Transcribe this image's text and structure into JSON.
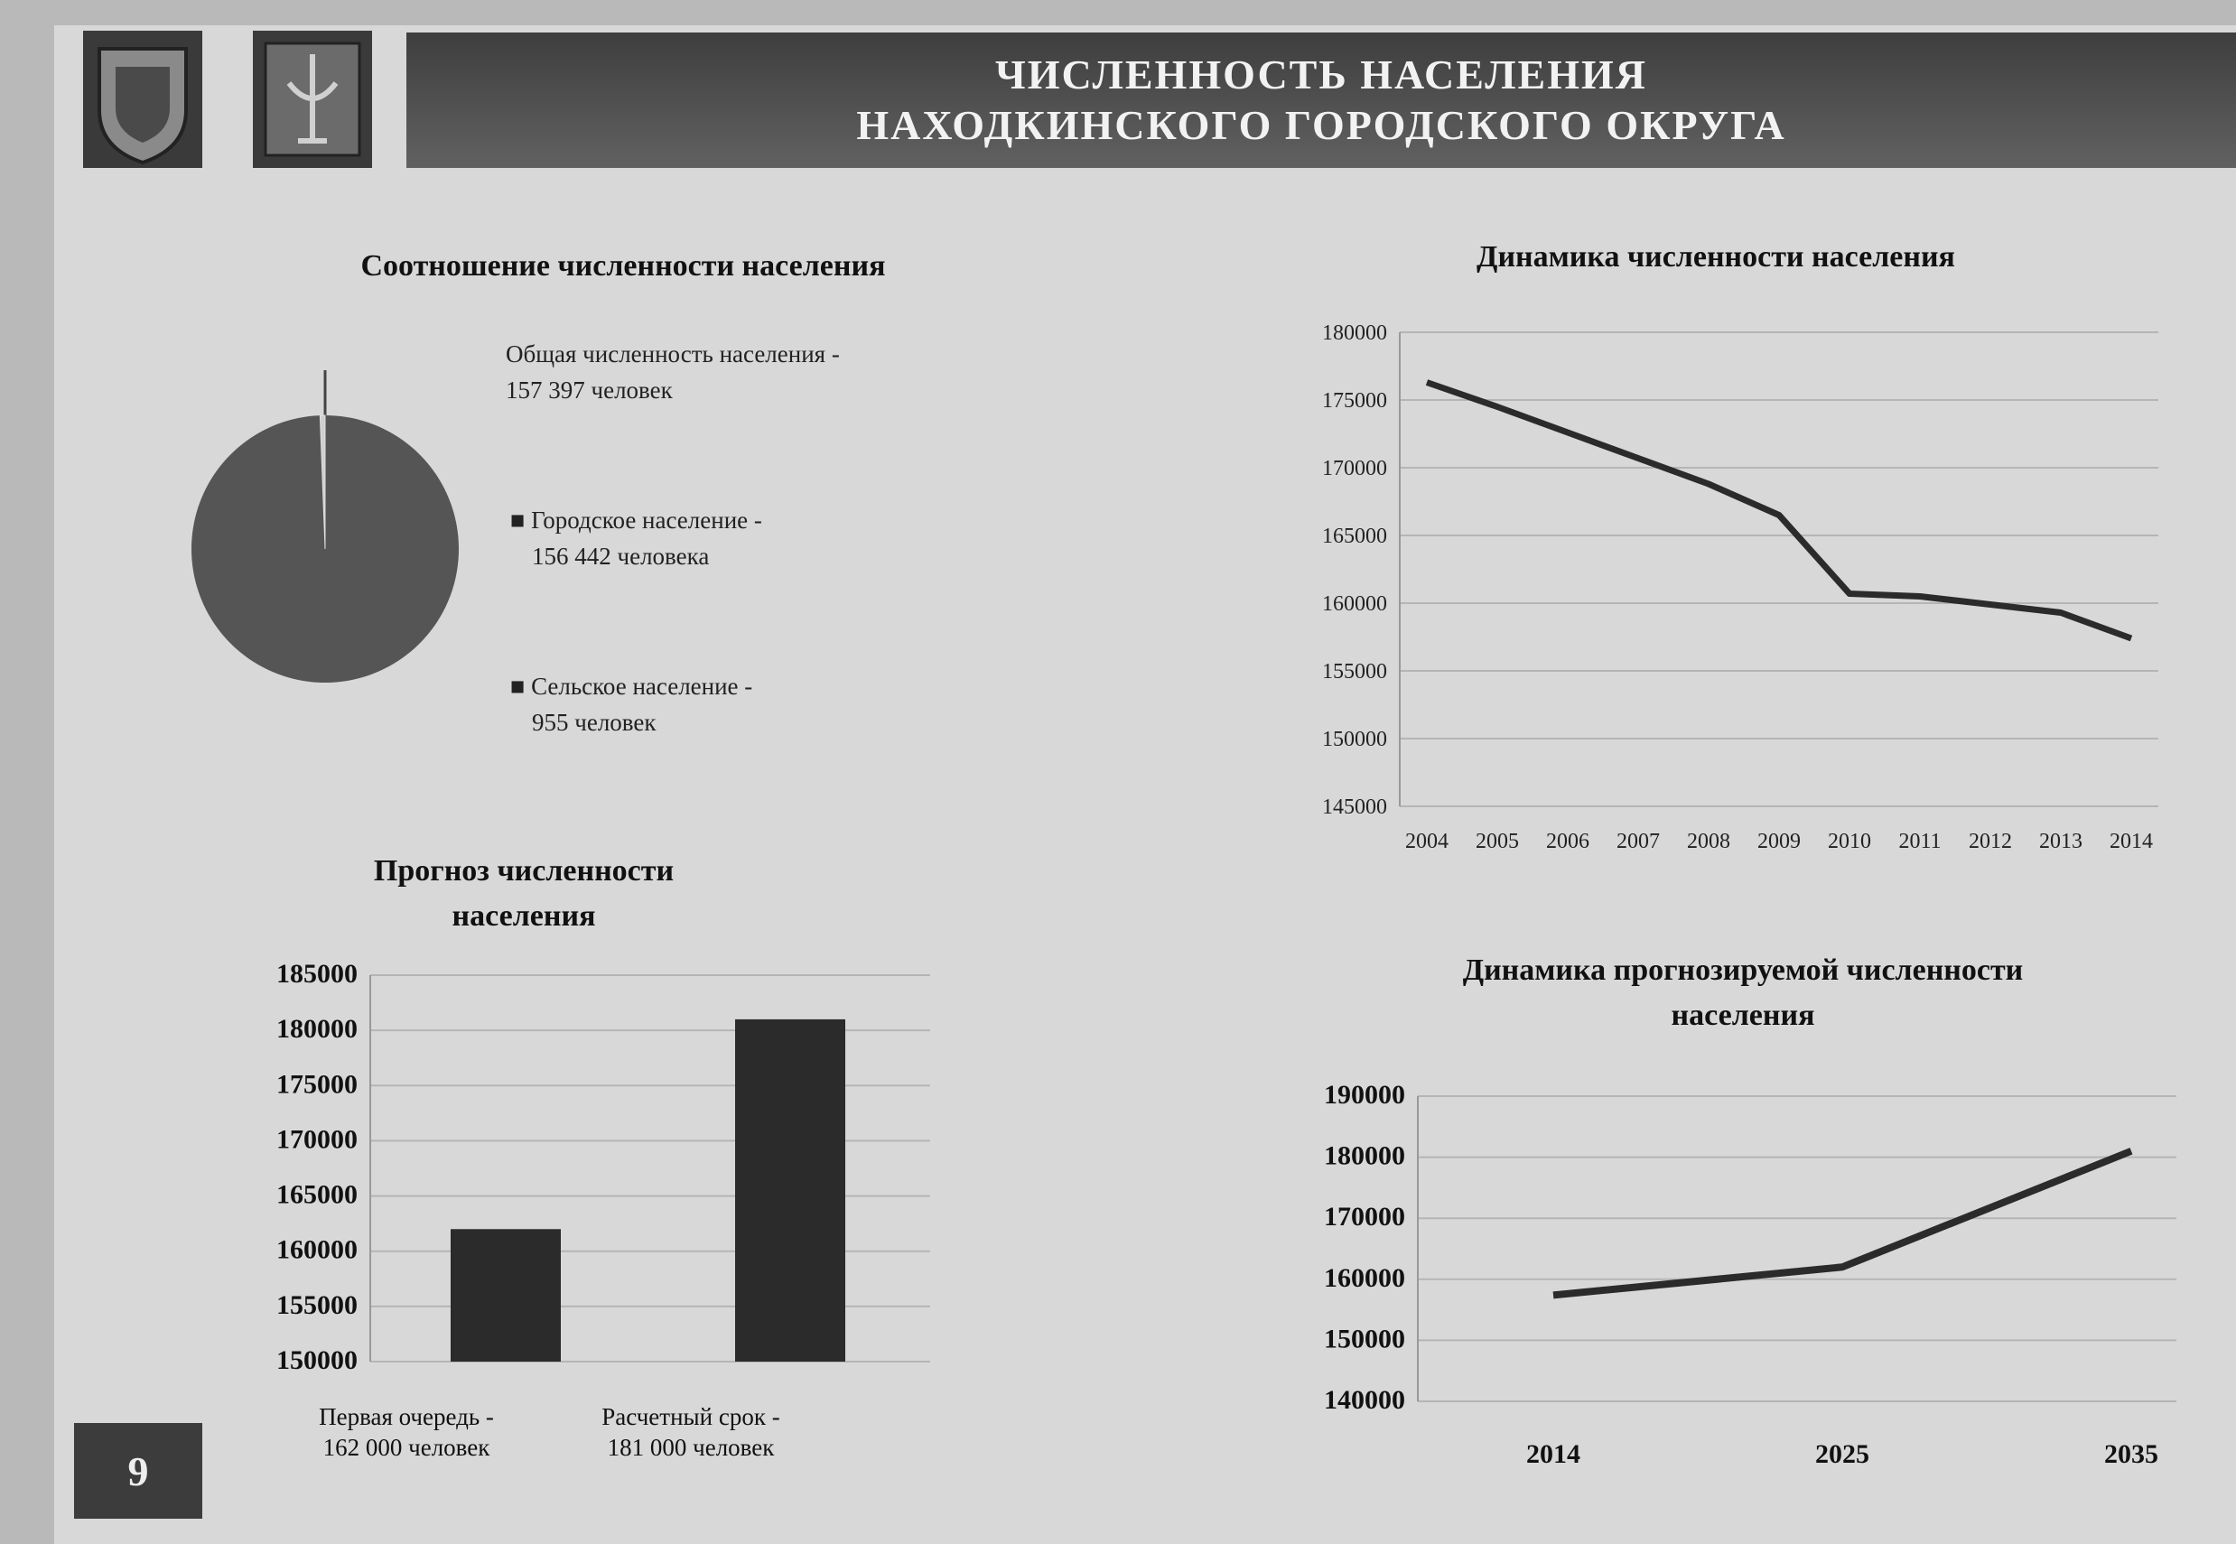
{
  "header": {
    "title_line1": "ЧИСЛЕННОСТЬ НАСЕЛЕНИЯ",
    "title_line2": "НАХОДКИНСКОГО ГОРОДСКОГО ОКРУГА"
  },
  "page_number": "9",
  "colors": {
    "header_bg": "#4a4a4a",
    "series": "#2b2b2b",
    "pie": "#555555",
    "grid": "#b5b5b5"
  },
  "chart_data": [
    {
      "type": "pie",
      "title": "Соотношение численности населения",
      "total_label": "Общая численность населения -",
      "total_value": "157 397 человек",
      "slices": [
        {
          "label": "Городское население -",
          "value_text": "156 442 человека",
          "value": 156442
        },
        {
          "label": "Сельское население -",
          "value_text": "955 человек",
          "value": 955
        }
      ]
    },
    {
      "type": "line",
      "title": "Динамика численности населения",
      "x": [
        "2004",
        "2005",
        "2006",
        "2007",
        "2008",
        "2009",
        "2010",
        "2011",
        "2012",
        "2013",
        "2014"
      ],
      "series": [
        {
          "values": [
            176300,
            174500,
            172600,
            170700,
            168800,
            166500,
            160700,
            160500,
            159900,
            159300,
            157400
          ]
        }
      ],
      "yticks": [
        "145000",
        "150000",
        "155000",
        "160000",
        "165000",
        "170000",
        "175000",
        "180000"
      ],
      "ylim": [
        145000,
        180000
      ],
      "grid": true
    },
    {
      "type": "bar",
      "title_line1": "Прогноз численности",
      "title_line2": "населения",
      "categories": [
        {
          "line1": "Первая очередь -",
          "line2": "162 000 человек"
        },
        {
          "line1": "Расчетный срок -",
          "line2": "181 000 человек"
        }
      ],
      "values": [
        162000,
        181000
      ],
      "yticks": [
        "150000",
        "155000",
        "160000",
        "165000",
        "170000",
        "175000",
        "180000",
        "185000"
      ],
      "ylim": [
        150000,
        185000
      ],
      "grid": true
    },
    {
      "type": "line",
      "title_line1": "Динамика прогнозируемой численности",
      "title_line2": "населения",
      "x": [
        "2014",
        "2025",
        "2035"
      ],
      "series": [
        {
          "values": [
            157400,
            162000,
            181000
          ]
        }
      ],
      "yticks": [
        "140000",
        "150000",
        "160000",
        "170000",
        "180000",
        "190000"
      ],
      "ylim": [
        140000,
        190000
      ],
      "grid": true
    }
  ]
}
